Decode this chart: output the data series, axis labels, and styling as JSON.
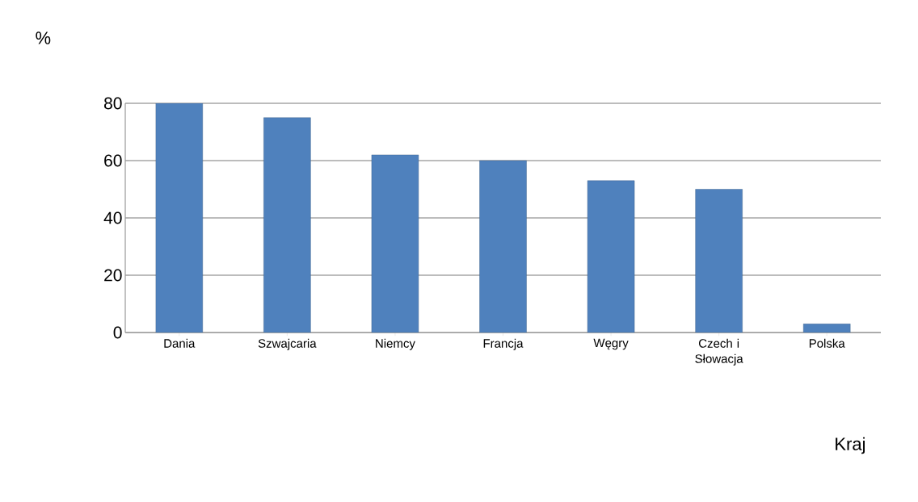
{
  "chart_data": {
    "type": "bar",
    "ylabel": "%",
    "xlabel": "Kraj",
    "categories": [
      "Dania",
      "Szwajcaria",
      "Niemcy",
      "Francja",
      "Węgry",
      "Czech i Słowacja",
      "Polska"
    ],
    "values": [
      80,
      75,
      62,
      60,
      53,
      50,
      3
    ],
    "color": "#4f81bd",
    "ylim": [
      0,
      80
    ],
    "yticks": [
      0,
      20,
      40,
      60,
      80
    ],
    "grid": "y"
  }
}
